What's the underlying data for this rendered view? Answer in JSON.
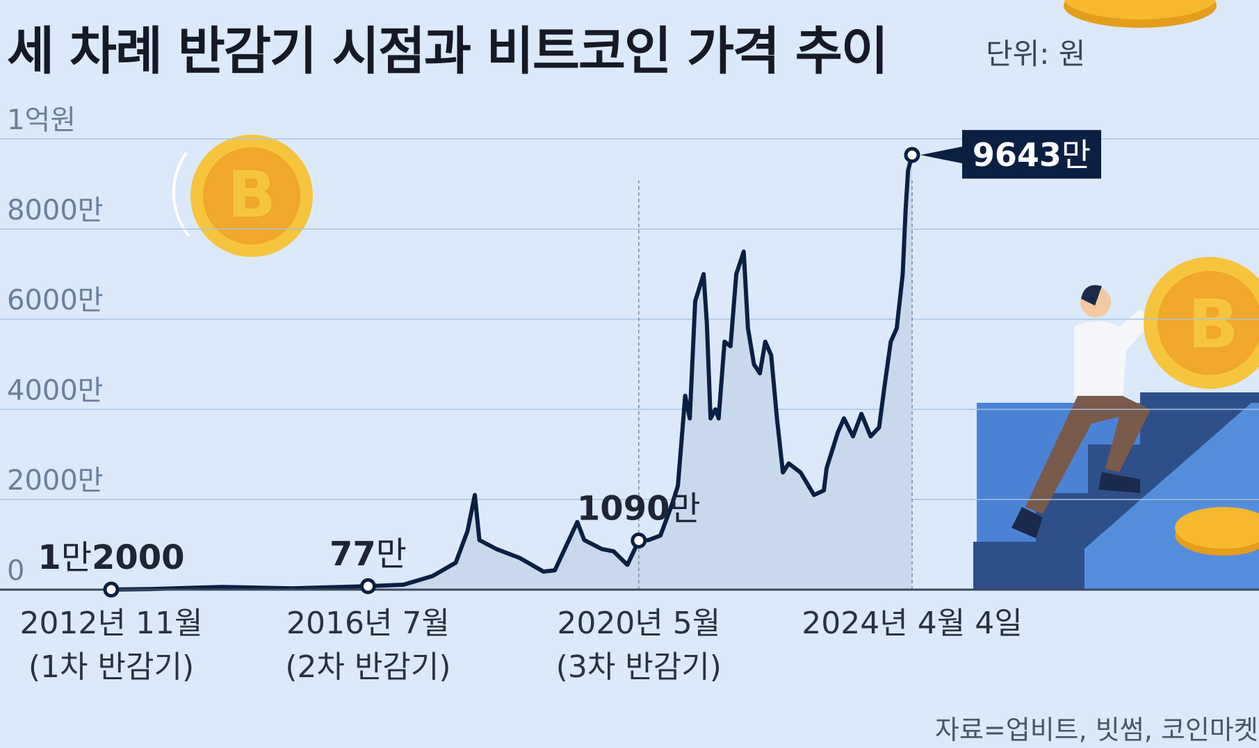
{
  "title": "세 차례 반감기 시점과 비트코인 가격 추이",
  "unit_label": "단위: 원",
  "source": "자료=업비트, 빗썸, 코인마켓캡",
  "colors": {
    "background": "#dbe9fa",
    "line": "#0b1f42",
    "area": "#c6d6ea",
    "grid": "#a9c3e2",
    "coin": "#f5b82e",
    "callout_bg": "#0b1f42",
    "stairs": "#2f4f8a"
  },
  "chart_data": {
    "type": "line",
    "title": "세 차례 반감기 시점과 비트코인 가격 추이",
    "ylabel": "단위: 원",
    "ylim": [
      0,
      100000000
    ],
    "yticks": [
      {
        "value": 0,
        "label": "0"
      },
      {
        "value": 20000000,
        "label": "2000만"
      },
      {
        "value": 40000000,
        "label": "4000만"
      },
      {
        "value": 60000000,
        "label": "6000만"
      },
      {
        "value": 80000000,
        "label": "8000만"
      },
      {
        "value": 100000000,
        "label": "1억원"
      }
    ],
    "xlim": [
      "2012-11-01",
      "2024-04-04"
    ],
    "grid": true,
    "series": [
      {
        "x": [
          "2012-11-01",
          "2013-06-01",
          "2014-06-01",
          "2015-06-01",
          "2016-07-01",
          "2017-01-01",
          "2017-06-01",
          "2017-10-01",
          "2017-12-01",
          "2018-01-08",
          "2018-02-01",
          "2018-05-01",
          "2018-09-01",
          "2019-01-01",
          "2019-03-01",
          "2019-06-26",
          "2019-08-01",
          "2019-11-01",
          "2020-01-01",
          "2020-03-13",
          "2020-05-11",
          "2020-07-01",
          "2020-09-01",
          "2020-11-01",
          "2020-12-01",
          "2021-01-08",
          "2021-02-01",
          "2021-03-01",
          "2021-04-14",
          "2021-05-01",
          "2021-05-20",
          "2021-06-15",
          "2021-07-01",
          "2021-08-01",
          "2021-09-01",
          "2021-10-01",
          "2021-11-09",
          "2021-12-01",
          "2022-01-01",
          "2022-02-01",
          "2022-03-01",
          "2022-04-01",
          "2022-05-01",
          "2022-06-01",
          "2022-07-01",
          "2022-09-01",
          "2022-11-10",
          "2022-12-31",
          "2023-01-15",
          "2023-03-15",
          "2023-04-15",
          "2023-06-01",
          "2023-07-15",
          "2023-09-01",
          "2023-10-15",
          "2023-11-15",
          "2023-12-15",
          "2024-01-15",
          "2024-02-15",
          "2024-03-01",
          "2024-03-14",
          "2024-04-04"
        ],
        "y": [
          12000,
          140000,
          600000,
          300000,
          770000,
          1100000,
          3000000,
          6000000,
          13000000,
          21000000,
          11000000,
          9000000,
          7000000,
          4000000,
          4300000,
          15000000,
          11000000,
          9000000,
          8500000,
          5500000,
          10900000,
          11000000,
          12000000,
          19000000,
          23000000,
          43000000,
          38000000,
          64000000,
          70000000,
          59000000,
          38000000,
          40000000,
          38000000,
          55000000,
          54000000,
          70000000,
          75000000,
          58000000,
          50000000,
          48000000,
          55000000,
          52000000,
          38000000,
          26000000,
          28000000,
          26000000,
          21000000,
          22000000,
          27000000,
          35000000,
          38000000,
          34000000,
          39000000,
          34000000,
          36000000,
          46000000,
          55000000,
          58000000,
          70000000,
          84000000,
          93000000,
          96430000
        ]
      }
    ],
    "xticks": [
      {
        "date": "2012-11-01",
        "label": "2012년 11월",
        "sub": "(1차 반감기)"
      },
      {
        "date": "2016-07-01",
        "label": "2016년 7월",
        "sub": "(2차 반감기)"
      },
      {
        "date": "2020-05-11",
        "label": "2020년 5월",
        "sub": "(3차 반감기)"
      },
      {
        "date": "2024-04-04",
        "label": "2024년 4월 4일",
        "sub": ""
      }
    ],
    "annotations": [
      {
        "date": "2012-11-01",
        "num": "1",
        "unit1": "만",
        "rest": "2000",
        "style": "plain"
      },
      {
        "date": "2016-07-01",
        "num": "77",
        "unit1": "만",
        "rest": "",
        "style": "plain"
      },
      {
        "date": "2020-05-11",
        "num": "1090",
        "unit1": "만",
        "rest": "",
        "style": "plain"
      },
      {
        "date": "2024-04-04",
        "num": "9643",
        "unit1": "만",
        "rest": "",
        "style": "callout"
      }
    ]
  }
}
